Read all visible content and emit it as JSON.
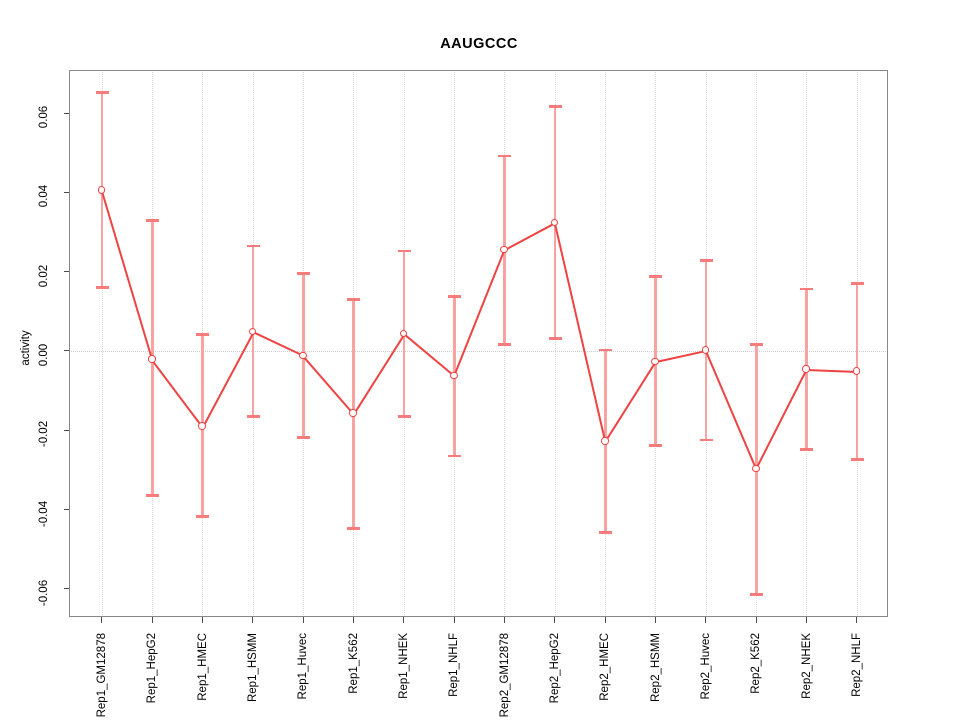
{
  "title": "AAUGCCC",
  "y_axis": {
    "label": "activity",
    "tick_labels": [
      "0.06",
      "0.04",
      "0.02",
      "0.00",
      "-0.02",
      "-0.04",
      "-0.06"
    ],
    "tick_values": [
      0.06,
      0.04,
      0.02,
      0.0,
      -0.02,
      -0.04,
      -0.06
    ]
  },
  "chart_data": {
    "type": "line",
    "title": "AAUGCCC",
    "xlabel": "",
    "ylabel": "activity",
    "ylim": [
      -0.067,
      0.07
    ],
    "grid": {
      "vertical": "dotted line at every category",
      "horizontal": "dotted line at y=0 only"
    },
    "legend_position": "none",
    "marker": "open-circle",
    "error_bars": true,
    "categories": [
      "Rep1_GM12878",
      "Rep1_HepG2",
      "Rep1_HMEC",
      "Rep1_HSMM",
      "Rep1_Huvec",
      "Rep1_K562",
      "Rep1_NHEK",
      "Rep1_NHLF",
      "Rep2_GM12878",
      "Rep2_HepG2",
      "Rep2_HMEC",
      "Rep2_HSMM",
      "Rep2_Huvec",
      "Rep2_K562",
      "Rep2_NHEK",
      "Rep2_NHLF"
    ],
    "series": [
      {
        "name": "activity",
        "values": [
          0.0405,
          -0.0021,
          -0.019,
          0.0048,
          -0.0012,
          -0.0158,
          0.0043,
          -0.0063,
          0.0255,
          0.0323,
          -0.0228,
          -0.0027,
          0.0001,
          -0.0297,
          -0.0047,
          -0.0052
        ],
        "ci_high": [
          0.0653,
          0.033,
          0.0042,
          0.0265,
          0.0195,
          0.013,
          0.0252,
          0.0137,
          0.0492,
          0.0617,
          0.0003,
          0.0188,
          0.0228,
          0.0016,
          0.0157,
          0.017
        ],
        "ci_low": [
          0.016,
          -0.0365,
          -0.0417,
          -0.0165,
          -0.0218,
          -0.0447,
          -0.0165,
          -0.0265,
          0.0017,
          0.0031,
          -0.0458,
          -0.0238,
          -0.0224,
          -0.0614,
          -0.0249,
          -0.0273
        ]
      }
    ],
    "colors": {
      "point_and_line": "#ee4343",
      "whisker": "#f9a2a2",
      "cap": "#f87c7c",
      "grid": "#dadada",
      "zero_line": "#cfcfcf",
      "frame": "#878787",
      "tick": "#4c4c4c",
      "text": "#000000"
    }
  }
}
